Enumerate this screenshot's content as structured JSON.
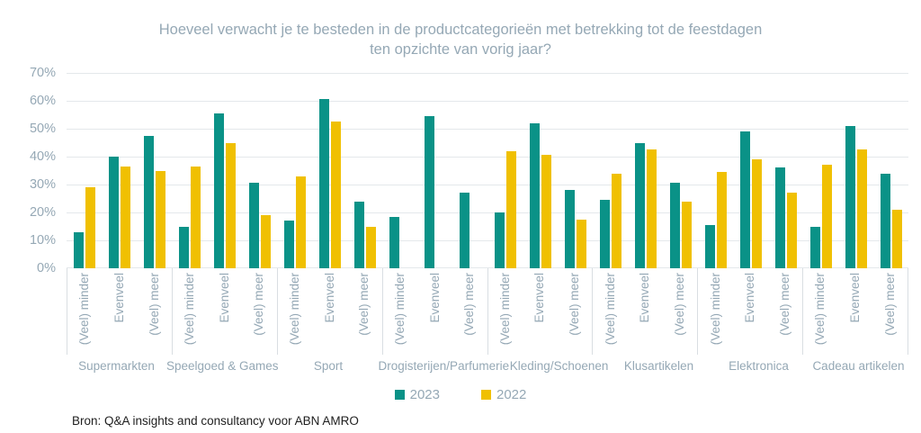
{
  "title": {
    "line1": "Hoeveel verwacht je te besteden in de productcategorieën met betrekking tot de feestdagen",
    "line2": "ten opzichte van vorig jaar?"
  },
  "source": "Bron: Q&A insights and consultancy voor ABN AMRO",
  "legend": [
    {
      "label": "2023",
      "swatch": "teal-square-icon",
      "color": "#0A9287"
    },
    {
      "label": "2022",
      "swatch": "yellow-square-icon",
      "color": "#F0C002"
    }
  ],
  "colors": {
    "series_2023": "#0A9287",
    "series_2022": "#F0C002",
    "axis_text": "#95A8B5",
    "gridline": "#E4E8EB",
    "separator": "#D9DEE2",
    "source_text": "#1F1F1F"
  },
  "y_axis": {
    "ticks": [
      "70%",
      "60%",
      "50%",
      "40%",
      "30%",
      "20%",
      "10%",
      "0%"
    ],
    "max": 70,
    "unit": "%"
  },
  "chart_data": {
    "type": "bar",
    "title": "Hoeveel verwacht je te besteden in de productcategorieën met betrekking tot de feestdagen ten opzichte van vorig jaar?",
    "xlabel": "",
    "ylabel": "",
    "ylim": [
      0,
      70
    ],
    "grid": true,
    "legend_position": "bottom",
    "series_names": [
      "2023",
      "2022"
    ],
    "subcategories": [
      "(Veel) minder",
      "Evenveel",
      "(Veel) meer"
    ],
    "groups": [
      {
        "name": "Supermarkten",
        "values_2023": [
          13,
          40,
          47.5
        ],
        "values_2022": [
          29,
          36.5,
          35
        ]
      },
      {
        "name": "Speelgoed & Games",
        "values_2023": [
          15,
          55.5,
          30.5
        ],
        "values_2022": [
          36.5,
          45,
          19
        ]
      },
      {
        "name": "Sport",
        "values_2023": [
          17,
          60.5,
          24
        ],
        "values_2022": [
          33,
          52.5,
          15
        ]
      },
      {
        "name": "Drogisterijen/Parfumerie",
        "values_2023": [
          18.5,
          54.5,
          27
        ],
        "values_2022": [
          null,
          null,
          null
        ]
      },
      {
        "name": "Kleding/Schoenen",
        "values_2023": [
          20,
          52,
          28
        ],
        "values_2022": [
          42,
          40.5,
          17.5
        ]
      },
      {
        "name": "Klusartikelen",
        "values_2023": [
          24.5,
          45,
          30.5
        ],
        "values_2022": [
          34,
          42.5,
          24
        ]
      },
      {
        "name": "Elektronica",
        "values_2023": [
          15.5,
          49,
          36
        ],
        "values_2022": [
          34.5,
          39,
          27
        ]
      },
      {
        "name": "Cadeau artikelen",
        "values_2023": [
          15,
          51,
          34
        ],
        "values_2022": [
          37,
          42.5,
          21
        ]
      }
    ]
  }
}
